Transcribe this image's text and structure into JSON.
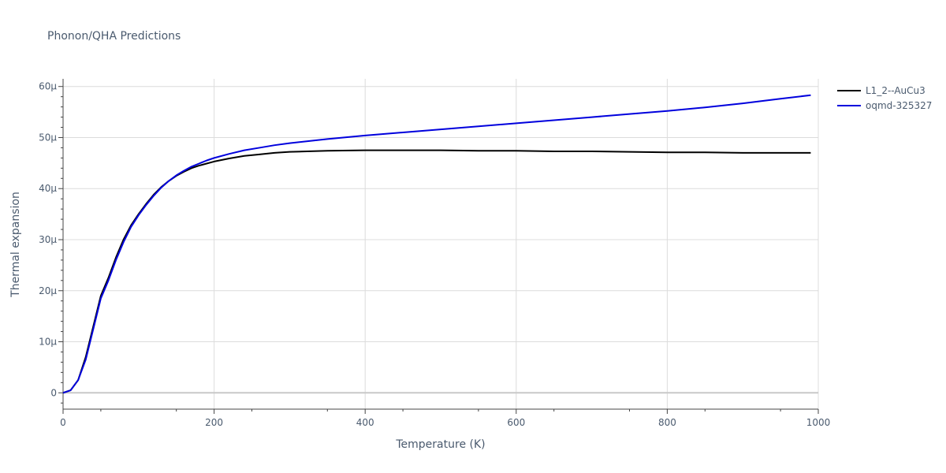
{
  "chart_data": {
    "type": "line",
    "title": "Phonon/QHA Predictions",
    "xlabel": "Temperature (K)",
    "ylabel": "Thermal expansion",
    "xlim": [
      0,
      1000
    ],
    "ylim": [
      -3.2e-06,
      6.15e-05
    ],
    "xticks": [
      0,
      200,
      400,
      600,
      800,
      1000
    ],
    "xtick_labels": [
      "0",
      "200",
      "400",
      "600",
      "800",
      "1000"
    ],
    "yticks": [
      0,
      1e-05,
      2e-05,
      3e-05,
      4e-05,
      5e-05,
      6e-05
    ],
    "ytick_labels": [
      "0",
      "10μ",
      "20μ",
      "30μ",
      "40μ",
      "50μ",
      "60μ"
    ],
    "grid": true,
    "legend_position": "top-right",
    "series": [
      {
        "name": "L1_2--AuCu3",
        "color": "#000000",
        "x": [
          0,
          10,
          20,
          30,
          40,
          50,
          60,
          70,
          80,
          90,
          100,
          110,
          120,
          130,
          140,
          150,
          160,
          170,
          180,
          190,
          200,
          220,
          240,
          260,
          280,
          300,
          350,
          400,
          450,
          500,
          550,
          600,
          650,
          700,
          750,
          800,
          850,
          900,
          950,
          990
        ],
        "y": [
          0,
          5e-07,
          2.5e-06,
          7e-06,
          1.3e-05,
          1.9e-05,
          2.25e-05,
          2.65e-05,
          3e-05,
          3.28e-05,
          3.5e-05,
          3.7e-05,
          3.88e-05,
          4.03e-05,
          4.15e-05,
          4.25e-05,
          4.33e-05,
          4.4e-05,
          4.45e-05,
          4.49e-05,
          4.53e-05,
          4.59e-05,
          4.64e-05,
          4.67e-05,
          4.7e-05,
          4.72e-05,
          4.74e-05,
          4.75e-05,
          4.75e-05,
          4.75e-05,
          4.74e-05,
          4.74e-05,
          4.73e-05,
          4.73e-05,
          4.72e-05,
          4.71e-05,
          4.71e-05,
          4.7e-05,
          4.7e-05,
          4.7e-05
        ]
      },
      {
        "name": "oqmd-325327",
        "color": "#0000dd",
        "x": [
          0,
          10,
          20,
          30,
          40,
          50,
          60,
          70,
          80,
          90,
          100,
          110,
          120,
          130,
          140,
          150,
          160,
          170,
          180,
          190,
          200,
          220,
          240,
          260,
          280,
          300,
          350,
          400,
          450,
          500,
          550,
          600,
          650,
          700,
          750,
          800,
          850,
          900,
          950,
          990
        ],
        "y": [
          0,
          5e-07,
          2.5e-06,
          6.5e-06,
          1.25e-05,
          1.85e-05,
          2.2e-05,
          2.6e-05,
          2.95e-05,
          3.25e-05,
          3.48e-05,
          3.68e-05,
          3.86e-05,
          4.02e-05,
          4.15e-05,
          4.26e-05,
          4.35e-05,
          4.43e-05,
          4.49e-05,
          4.55e-05,
          4.6e-05,
          4.68e-05,
          4.75e-05,
          4.8e-05,
          4.85e-05,
          4.89e-05,
          4.97e-05,
          5.04e-05,
          5.1e-05,
          5.16e-05,
          5.22e-05,
          5.28e-05,
          5.34e-05,
          5.4e-05,
          5.46e-05,
          5.52e-05,
          5.59e-05,
          5.67e-05,
          5.76e-05,
          5.83e-05
        ]
      }
    ]
  }
}
